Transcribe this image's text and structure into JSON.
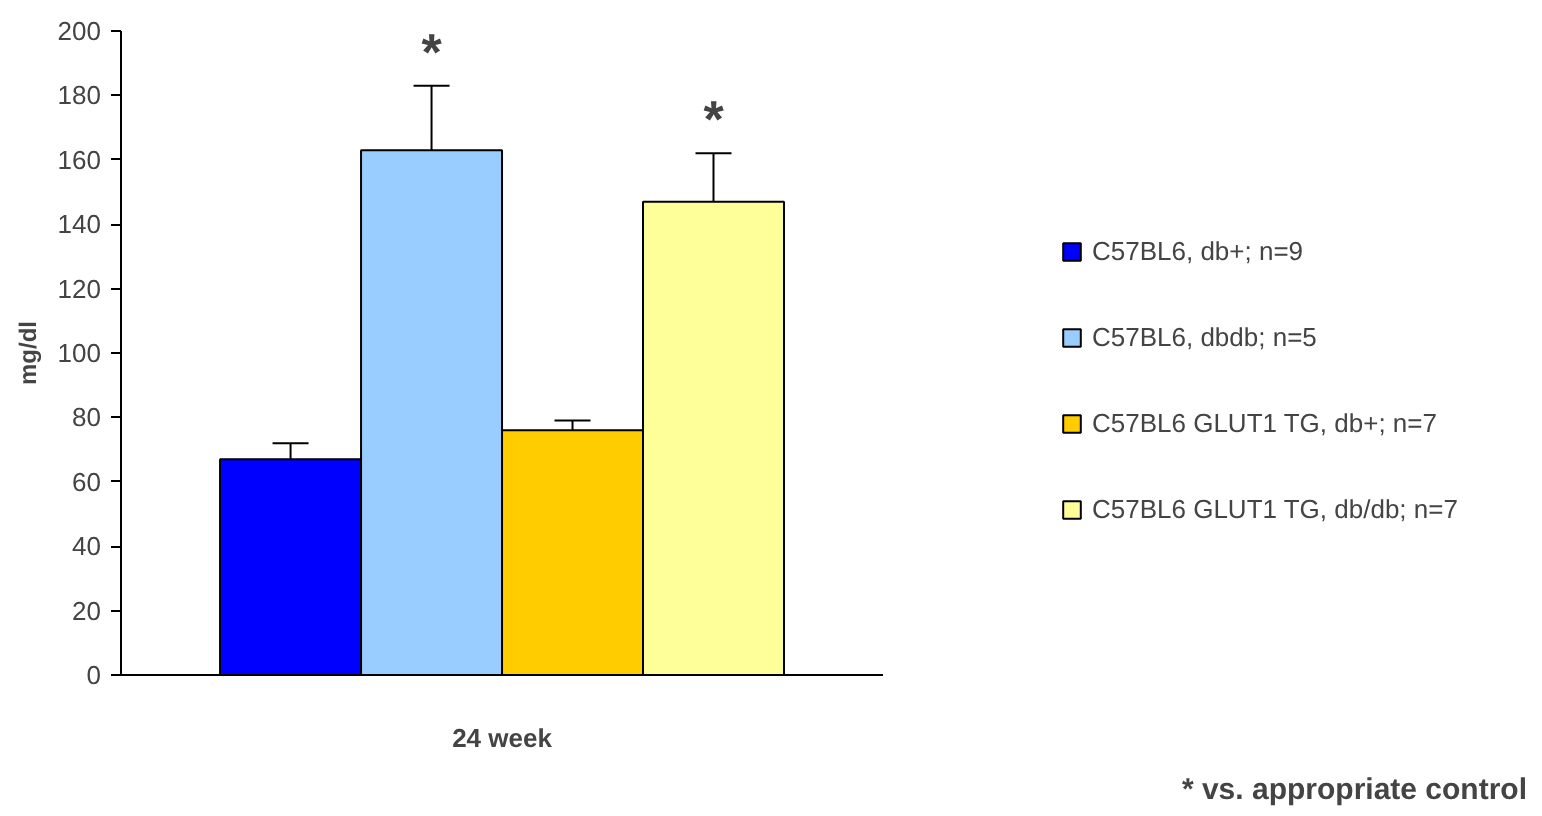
{
  "chart_data": {
    "type": "bar",
    "ylabel": "mg/dl",
    "categories": [
      "24 week"
    ],
    "series": [
      {
        "name": "C57BL6, db+; n=9",
        "color": "#0000ff",
        "values": [
          67
        ],
        "errors": [
          5
        ],
        "value_labels": [
          null
        ]
      },
      {
        "name": "C57BL6, dbdb; n=5",
        "color": "#99ccff",
        "values": [
          163
        ],
        "errors": [
          20
        ],
        "value_labels": [
          "*"
        ]
      },
      {
        "name": "C57BL6 GLUT1 TG, db+; n=7",
        "color": "#ffcc00",
        "values": [
          76
        ],
        "errors": [
          3
        ],
        "value_labels": [
          null
        ]
      },
      {
        "name": "C57BL6 GLUT1 TG, db/db; n=7",
        "color": "#ffff99",
        "values": [
          147
        ],
        "errors": [
          15
        ],
        "value_labels": [
          "*"
        ]
      }
    ],
    "ylim": [
      0,
      200
    ],
    "yticks": [
      0,
      20,
      40,
      60,
      80,
      100,
      120,
      140,
      160,
      180,
      200
    ],
    "grid": false,
    "legend": "right",
    "annotations": [
      "* vs. appropriate control"
    ]
  }
}
